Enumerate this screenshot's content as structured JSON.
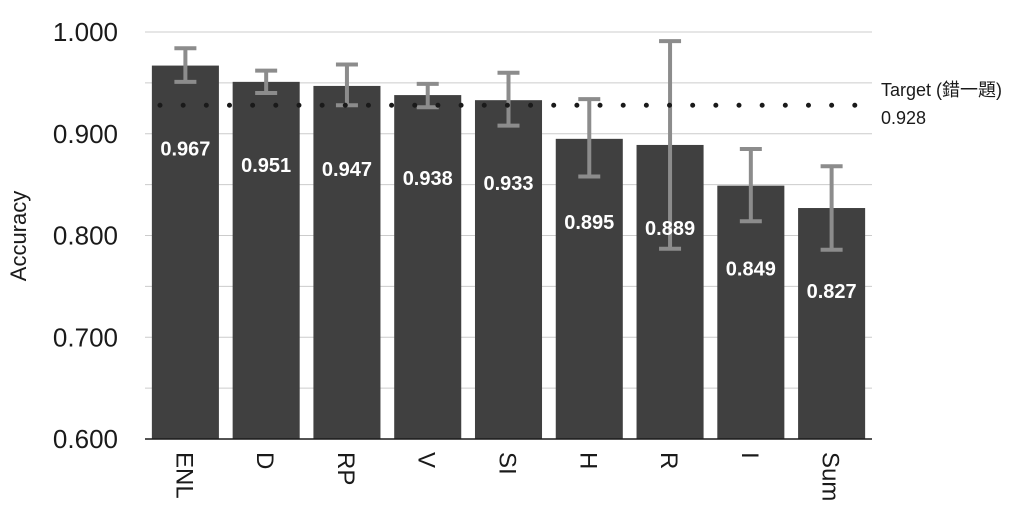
{
  "chart_data": {
    "type": "bar",
    "ylabel": "Accuracy",
    "xlabel": "",
    "title": "",
    "ylim": [
      0.6,
      1.0
    ],
    "yticks": [
      "0.600",
      "0.700",
      "0.800",
      "0.900",
      "1.000"
    ],
    "grid": true,
    "categories": [
      "ENL",
      "D",
      "RP",
      "V",
      "SI",
      "H",
      "R",
      "I",
      "Sum"
    ],
    "values": [
      0.967,
      0.951,
      0.947,
      0.938,
      0.933,
      0.895,
      0.889,
      0.849,
      0.827
    ],
    "value_labels": [
      "0.967",
      "0.951",
      "0.947",
      "0.938",
      "0.933",
      "0.895",
      "0.889",
      "0.849",
      "0.827"
    ],
    "error_low": [
      0.951,
      0.94,
      0.928,
      0.926,
      0.908,
      0.858,
      0.787,
      0.814,
      0.786
    ],
    "error_high": [
      0.984,
      0.962,
      0.968,
      0.949,
      0.96,
      0.934,
      0.991,
      0.885,
      0.868
    ],
    "reference_line": {
      "value": 0.928,
      "label": "Target (錯一題)",
      "value_label": "0.928"
    },
    "colors": {
      "bar": "#404040",
      "error": "#8c8c8c",
      "grid": "#cccccc",
      "reference": "#1a1a1a"
    }
  }
}
